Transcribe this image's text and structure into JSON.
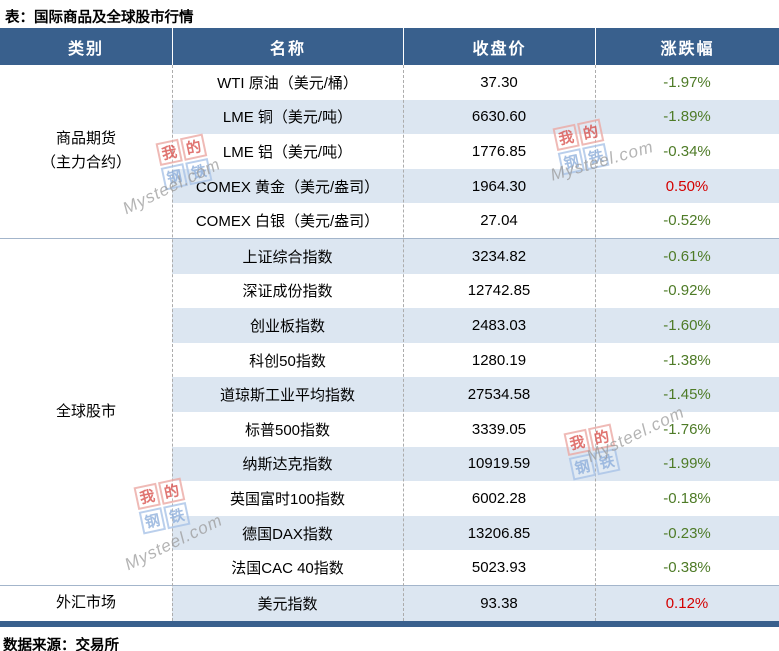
{
  "title": "表：国际商品及全球股市行情",
  "columns": [
    "类别",
    "名称",
    "收盘价",
    "涨跌幅"
  ],
  "groups": [
    {
      "category": "商品期货\n（主力合约）",
      "rows": [
        {
          "name": "WTI 原油（美元/桶）",
          "close": "37.30",
          "change": "-1.97%"
        },
        {
          "name": "LME 铜（美元/吨）",
          "close": "6630.60",
          "change": "-1.89%"
        },
        {
          "name": "LME 铝（美元/吨）",
          "close": "1776.85",
          "change": "-0.34%"
        },
        {
          "name": "COMEX 黄金（美元/盎司）",
          "close": "1964.30",
          "change": "0.50%"
        },
        {
          "name": "COMEX 白银（美元/盎司）",
          "close": "27.04",
          "change": "-0.52%"
        }
      ]
    },
    {
      "category": "全球股市",
      "rows": [
        {
          "name": "上证综合指数",
          "close": "3234.82",
          "change": "-0.61%"
        },
        {
          "name": "深证成份指数",
          "close": "12742.85",
          "change": "-0.92%"
        },
        {
          "name": "创业板指数",
          "close": "2483.03",
          "change": "-1.60%"
        },
        {
          "name": "科创50指数",
          "close": "1280.19",
          "change": "-1.38%"
        },
        {
          "name": "道琼斯工业平均指数",
          "close": "27534.58",
          "change": "-1.45%"
        },
        {
          "name": "标普500指数",
          "close": "3339.05",
          "change": "-1.76%"
        },
        {
          "name": "纳斯达克指数",
          "close": "10919.59",
          "change": "-1.99%"
        },
        {
          "name": "英国富时100指数",
          "close": "6002.28",
          "change": "-0.18%"
        },
        {
          "name": "德国DAX指数",
          "close": "13206.85",
          "change": "-0.23%"
        },
        {
          "name": "法国CAC 40指数",
          "close": "5023.93",
          "change": "-0.38%"
        }
      ]
    },
    {
      "category": "外汇市场",
      "rows": [
        {
          "name": "美元指数",
          "close": "93.38",
          "change": "0.12%"
        }
      ]
    }
  ],
  "footer": "数据来源：交易所",
  "watermark": {
    "chars": [
      "我",
      "的",
      "钢",
      "铁"
    ],
    "text": "Mysteel.com"
  },
  "colors": {
    "header_bg": "#39608D",
    "stripe_bg": "#DCE6F1",
    "up": "#D40000",
    "down": "#4E7B27"
  },
  "chart_data": {
    "type": "table",
    "title": "表：国际商品及全球股市行情",
    "columns": [
      "类别",
      "名称",
      "收盘价",
      "涨跌幅"
    ],
    "rows": [
      [
        "商品期货（主力合约）",
        "WTI 原油（美元/桶）",
        "37.30",
        "-1.97%"
      ],
      [
        "商品期货（主力合约）",
        "LME 铜（美元/吨）",
        "6630.60",
        "-1.89%"
      ],
      [
        "商品期货（主力合约）",
        "LME 铝（美元/吨）",
        "1776.85",
        "-0.34%"
      ],
      [
        "商品期货（主力合约）",
        "COMEX 黄金（美元/盎司）",
        "1964.30",
        "0.50%"
      ],
      [
        "商品期货（主力合约）",
        "COMEX 白银（美元/盎司）",
        "27.04",
        "-0.52%"
      ],
      [
        "全球股市",
        "上证综合指数",
        "3234.82",
        "-0.61%"
      ],
      [
        "全球股市",
        "深证成份指数",
        "12742.85",
        "-0.92%"
      ],
      [
        "全球股市",
        "创业板指数",
        "2483.03",
        "-1.60%"
      ],
      [
        "全球股市",
        "科创50指数",
        "1280.19",
        "-1.38%"
      ],
      [
        "全球股市",
        "道琼斯工业平均指数",
        "27534.58",
        "-1.45%"
      ],
      [
        "全球股市",
        "标普500指数",
        "3339.05",
        "-1.76%"
      ],
      [
        "全球股市",
        "纳斯达克指数",
        "10919.59",
        "-1.99%"
      ],
      [
        "全球股市",
        "英国富时100指数",
        "6002.28",
        "-0.18%"
      ],
      [
        "全球股市",
        "德国DAX指数",
        "13206.85",
        "-0.23%"
      ],
      [
        "全球股市",
        "法国CAC 40指数",
        "5023.93",
        "-0.38%"
      ],
      [
        "外汇市场",
        "美元指数",
        "93.38",
        "0.12%"
      ]
    ],
    "source": "数据来源：交易所",
    "notes": "negative change = green, positive change = red"
  }
}
